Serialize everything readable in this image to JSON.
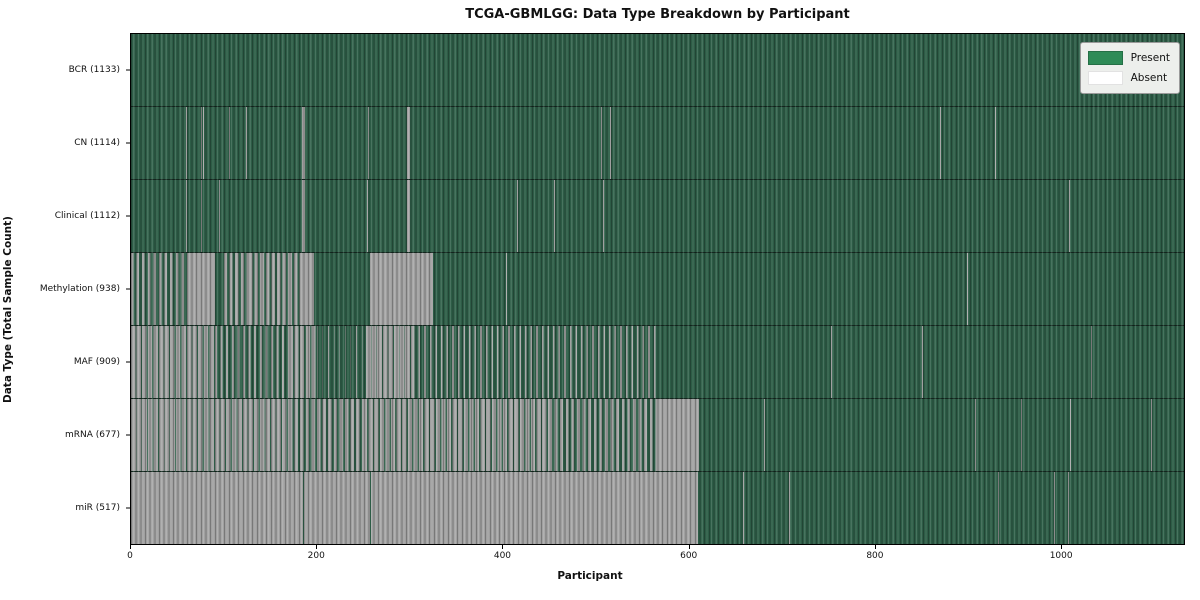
{
  "chart_data": {
    "type": "heatmap",
    "title": "TCGA-GBMLGG: Data Type Breakdown by Participant",
    "xlabel": "Participant",
    "ylabel": "Data Type (Total Sample Count)",
    "x_max": 1133,
    "x_ticks": [
      0,
      200,
      400,
      600,
      800,
      1000
    ],
    "grid": false,
    "legend_position": "upper right",
    "legend": [
      {
        "label": "Present",
        "color": "#2e8b57"
      },
      {
        "label": "Absent",
        "color": "#ffffff"
      }
    ],
    "plot_colors": {
      "present": "#2f6049",
      "absent": "#a6a6a6"
    },
    "rows": [
      {
        "name": "bcr",
        "label": "BCR (1133)",
        "present_count": 1133,
        "absent_segments": [],
        "mixed_segments": []
      },
      {
        "name": "cn",
        "label": "CN (1114)",
        "present_count": 1114,
        "absent_segments": [
          [
            59,
            60
          ],
          [
            75,
            76
          ],
          [
            77,
            78
          ],
          [
            105,
            106
          ],
          [
            124,
            125
          ],
          [
            184,
            187
          ],
          [
            255,
            256
          ],
          [
            297,
            300
          ],
          [
            506,
            507
          ],
          [
            515,
            516
          ],
          [
            870,
            871
          ],
          [
            930,
            931
          ]
        ],
        "mixed_segments": []
      },
      {
        "name": "clinical",
        "label": "Clinical (1112)",
        "present_count": 1112,
        "absent_segments": [
          [
            59,
            60
          ],
          [
            75,
            76
          ],
          [
            95,
            96
          ],
          [
            184,
            187
          ],
          [
            254,
            255
          ],
          [
            297,
            300
          ],
          [
            415,
            416
          ],
          [
            455,
            456
          ],
          [
            508,
            509
          ],
          [
            1009,
            1010
          ]
        ],
        "mixed_segments": []
      },
      {
        "name": "methylation",
        "label": "Methylation (938)",
        "present_count": 938,
        "absent_segments": [
          [
            62,
            90
          ],
          [
            185,
            197
          ],
          [
            257,
            325
          ],
          [
            404,
            405
          ],
          [
            899,
            900
          ]
        ],
        "mixed_segments": [
          [
            0,
            62,
            0.45
          ],
          [
            100,
            127,
            0.55
          ],
          [
            127,
            185,
            0.65
          ]
        ]
      },
      {
        "name": "maf",
        "label": "MAF (909)",
        "present_count": 909,
        "absent_segments": [
          [
            753,
            754
          ],
          [
            851,
            852
          ],
          [
            1033,
            1034
          ]
        ],
        "mixed_segments": [
          [
            0,
            90,
            0.78
          ],
          [
            90,
            170,
            0.35
          ],
          [
            170,
            200,
            0.72
          ],
          [
            200,
            253,
            0.1
          ],
          [
            253,
            303,
            0.85
          ],
          [
            303,
            568,
            0.28
          ]
        ]
      },
      {
        "name": "mrna",
        "label": "mRNA (677)",
        "present_count": 677,
        "absent_segments": [
          [
            565,
            611
          ],
          [
            681,
            682
          ],
          [
            908,
            909
          ],
          [
            958,
            959
          ],
          [
            1010,
            1011
          ],
          [
            1097,
            1098
          ]
        ],
        "mixed_segments": [
          [
            0,
            60,
            0.85
          ],
          [
            60,
            170,
            0.8
          ],
          [
            170,
            250,
            0.6
          ],
          [
            250,
            450,
            0.75
          ],
          [
            450,
            565,
            0.5
          ]
        ]
      },
      {
        "name": "mir",
        "label": "miR (517)",
        "present_count": 517,
        "absent_segments": [
          [
            0,
            185
          ],
          [
            186,
            257
          ],
          [
            258,
            610
          ],
          [
            658,
            659
          ],
          [
            708,
            709
          ],
          [
            933,
            934
          ],
          [
            993,
            994
          ],
          [
            1008,
            1009
          ]
        ],
        "mixed_segments": []
      }
    ]
  }
}
